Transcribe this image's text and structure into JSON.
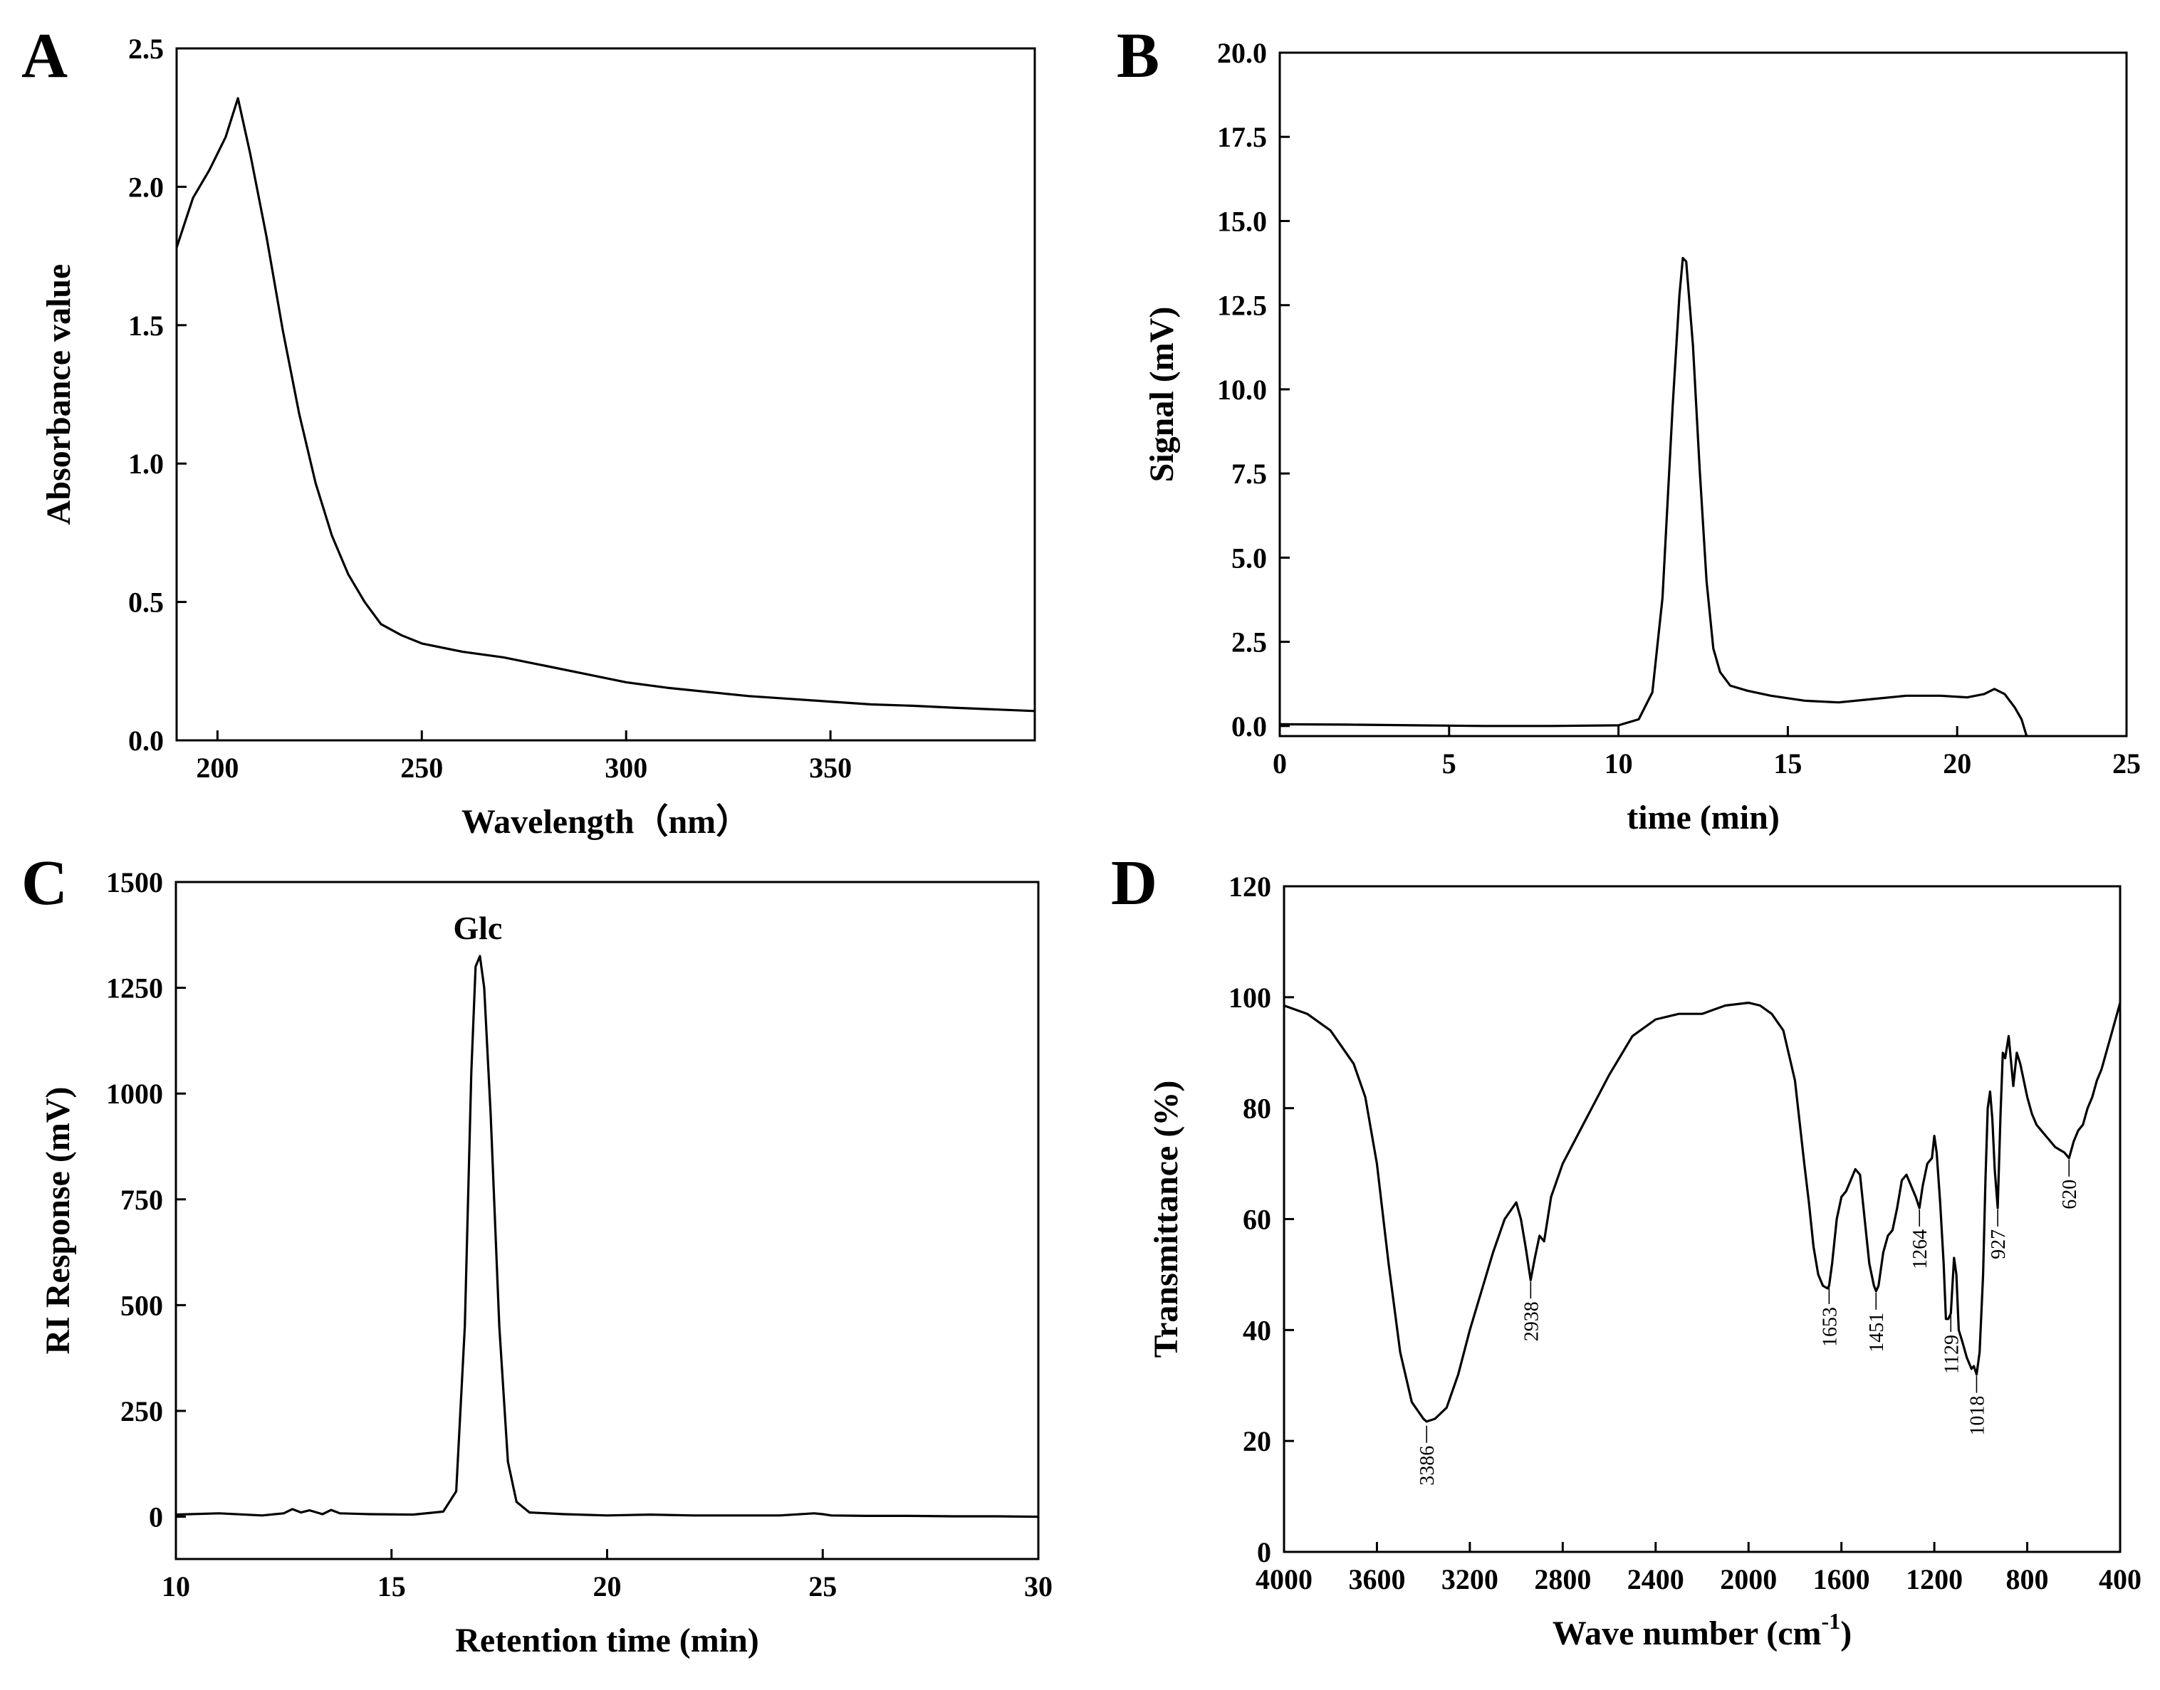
{
  "chart_data": [
    {
      "panel": "A",
      "type": "line",
      "title": "",
      "xlabel": "Wavelength（nm）",
      "ylabel": "Absorbance value",
      "xlim": [
        190,
        400
      ],
      "ylim": [
        0,
        2.5
      ],
      "xticks": [
        200,
        250,
        300,
        350
      ],
      "yticks": [
        0.0,
        0.5,
        1.0,
        1.5,
        2.0,
        2.5
      ],
      "xtick_labels": [
        "200",
        "250",
        "300",
        "350"
      ],
      "ytick_labels": [
        "0.0",
        "0.5",
        "1.0",
        "1.5",
        "2.0",
        "2.5"
      ],
      "x": [
        190,
        194,
        198,
        202,
        205,
        208,
        212,
        216,
        220,
        224,
        228,
        232,
        236,
        240,
        245,
        250,
        260,
        270,
        280,
        290,
        300,
        310,
        320,
        330,
        340,
        350,
        360,
        370,
        380,
        390,
        400
      ],
      "y": [
        1.78,
        1.96,
        2.06,
        2.18,
        2.32,
        2.12,
        1.82,
        1.48,
        1.18,
        0.93,
        0.74,
        0.6,
        0.5,
        0.42,
        0.38,
        0.35,
        0.32,
        0.3,
        0.27,
        0.24,
        0.21,
        0.19,
        0.175,
        0.16,
        0.15,
        0.14,
        0.13,
        0.125,
        0.118,
        0.112,
        0.106
      ]
    },
    {
      "panel": "B",
      "type": "line",
      "title": "",
      "xlabel": "time (min)",
      "ylabel": "Signal (mV)",
      "xlim": [
        0,
        25
      ],
      "ylim": [
        -0.3,
        20.0
      ],
      "xticks": [
        0,
        5,
        10,
        15,
        20,
        25
      ],
      "yticks": [
        0.0,
        2.5,
        5.0,
        7.5,
        10.0,
        12.5,
        15.0,
        17.5,
        20.0
      ],
      "xtick_labels": [
        "0",
        "5",
        "10",
        "15",
        "20",
        "25"
      ],
      "ytick_labels": [
        "0.0",
        "2.5",
        "5.0",
        "7.5",
        "10.0",
        "12.5",
        "15.0",
        "17.5",
        "20.0"
      ],
      "x": [
        0,
        2,
        4,
        6,
        8,
        10,
        10.6,
        11.0,
        11.3,
        11.6,
        11.8,
        11.9,
        12.0,
        12.2,
        12.4,
        12.6,
        12.8,
        13.0,
        13.3,
        13.8,
        14.5,
        15.5,
        16.5,
        17.5,
        18.5,
        19.5,
        20.3,
        20.8,
        21.1,
        21.4,
        21.7,
        21.9,
        22.05
      ],
      "y": [
        0.05,
        0.04,
        0.02,
        0.0,
        0.0,
        0.02,
        0.2,
        1.0,
        3.8,
        9.5,
        12.8,
        13.9,
        13.8,
        11.3,
        7.6,
        4.3,
        2.3,
        1.6,
        1.2,
        1.05,
        0.9,
        0.75,
        0.7,
        0.8,
        0.9,
        0.9,
        0.85,
        0.95,
        1.1,
        0.95,
        0.55,
        0.2,
        -0.3
      ]
    },
    {
      "panel": "C",
      "type": "line",
      "title": "",
      "xlabel": "Retention time (min)",
      "ylabel": "RI Response (mV)",
      "xlim": [
        10,
        30
      ],
      "ylim": [
        -100,
        1500
      ],
      "xticks": [
        10,
        15,
        20,
        25,
        30
      ],
      "yticks": [
        0,
        250,
        500,
        750,
        1000,
        1250,
        1500
      ],
      "xtick_labels": [
        "10",
        "15",
        "20",
        "25",
        "30"
      ],
      "ytick_labels": [
        "0",
        "250",
        "500",
        "750",
        "1000",
        "1250",
        "1500"
      ],
      "annotations": [
        {
          "text": "Glc",
          "x": 17.0,
          "y": 1345
        }
      ],
      "x": [
        10,
        11,
        12,
        12.5,
        12.7,
        12.9,
        13.1,
        13.4,
        13.6,
        13.8,
        14.5,
        15.5,
        16.2,
        16.5,
        16.7,
        16.85,
        16.95,
        17.05,
        17.15,
        17.3,
        17.5,
        17.7,
        17.9,
        18.2,
        19,
        20,
        21,
        22,
        23,
        24,
        24.8,
        25,
        25.2,
        26,
        27,
        28,
        29,
        30
      ],
      "y": [
        5,
        8,
        3,
        8,
        18,
        10,
        15,
        6,
        16,
        8,
        6,
        5,
        12,
        60,
        450,
        1050,
        1300,
        1325,
        1250,
        950,
        450,
        130,
        35,
        10,
        6,
        3,
        5,
        3,
        3,
        3,
        8,
        6,
        3,
        2,
        2,
        1,
        1,
        0
      ]
    },
    {
      "panel": "D",
      "type": "line",
      "title": "",
      "xlabel": "Wave number (cm",
      "xlabel_sup": "-1",
      "xlabel_end": ")",
      "ylabel": "Transmittance (%)",
      "xlim": [
        4000,
        400
      ],
      "ylim": [
        0,
        120
      ],
      "xticks": [
        4000,
        3600,
        3200,
        2800,
        2400,
        2000,
        1600,
        1200,
        800,
        400
      ],
      "yticks": [
        0,
        20,
        40,
        60,
        80,
        100,
        120
      ],
      "xtick_labels": [
        "4000",
        "3600",
        "3200",
        "2800",
        "2400",
        "2000",
        "1600",
        "1200",
        "800",
        "400"
      ],
      "ytick_labels": [
        "0",
        "20",
        "40",
        "60",
        "80",
        "100",
        "120"
      ],
      "peak_labels": [
        {
          "text": "3386",
          "x": 3386,
          "y": 23
        },
        {
          "text": "2938",
          "x": 2938,
          "y": 49
        },
        {
          "text": "1653",
          "x": 1653,
          "y": 48
        },
        {
          "text": "1451",
          "x": 1451,
          "y": 47
        },
        {
          "text": "1264",
          "x": 1264,
          "y": 62
        },
        {
          "text": "1129",
          "x": 1129,
          "y": 43
        },
        {
          "text": "1018",
          "x": 1018,
          "y": 32
        },
        {
          "text": "927",
          "x": 927,
          "y": 62
        },
        {
          "text": "620",
          "x": 620,
          "y": 71
        }
      ],
      "x": [
        4000,
        3900,
        3800,
        3700,
        3650,
        3600,
        3550,
        3500,
        3450,
        3400,
        3386,
        3350,
        3300,
        3250,
        3200,
        3150,
        3100,
        3050,
        3000,
        2980,
        2960,
        2938,
        2920,
        2900,
        2880,
        2850,
        2800,
        2700,
        2600,
        2500,
        2400,
        2300,
        2200,
        2100,
        2000,
        1950,
        1900,
        1850,
        1800,
        1760,
        1740,
        1720,
        1700,
        1680,
        1660,
        1653,
        1640,
        1620,
        1600,
        1580,
        1560,
        1540,
        1520,
        1500,
        1480,
        1460,
        1451,
        1440,
        1420,
        1400,
        1380,
        1360,
        1340,
        1320,
        1300,
        1280,
        1264,
        1250,
        1230,
        1210,
        1200,
        1190,
        1175,
        1160,
        1150,
        1140,
        1129,
        1115,
        1105,
        1095,
        1080,
        1060,
        1040,
        1030,
        1018,
        1005,
        990,
        980,
        970,
        960,
        950,
        940,
        927,
        915,
        905,
        895,
        880,
        860,
        845,
        830,
        815,
        800,
        780,
        760,
        740,
        720,
        700,
        680,
        660,
        640,
        620,
        600,
        580,
        560,
        540,
        520,
        500,
        480,
        460,
        440,
        420,
        400
      ],
      "y": [
        98.5,
        97,
        94,
        88,
        82,
        70,
        52,
        36,
        27,
        24,
        23.5,
        24,
        26,
        32,
        40,
        47,
        54,
        60,
        63,
        60,
        55,
        49,
        53,
        57,
        56,
        64,
        70,
        78,
        86,
        93,
        96,
        97,
        97,
        98.5,
        99,
        98.5,
        97,
        94,
        85,
        70,
        63,
        55,
        50,
        48,
        47.5,
        48,
        52,
        60,
        64,
        65,
        67,
        69,
        68,
        60,
        52,
        48,
        47,
        48,
        54,
        57,
        58,
        62,
        67,
        68,
        66,
        64,
        62,
        66,
        70,
        71,
        75,
        72,
        63,
        52,
        42,
        42,
        43,
        53,
        50,
        40,
        38,
        35,
        33,
        33.5,
        32,
        36,
        50,
        67,
        80,
        83,
        78,
        69,
        62,
        79,
        90,
        89,
        93,
        84,
        90,
        88,
        85,
        82,
        79,
        77,
        76,
        75,
        74,
        73,
        72.5,
        72,
        71,
        74,
        76,
        77,
        80,
        82,
        85,
        87,
        90,
        93,
        96,
        99
      ]
    }
  ]
}
